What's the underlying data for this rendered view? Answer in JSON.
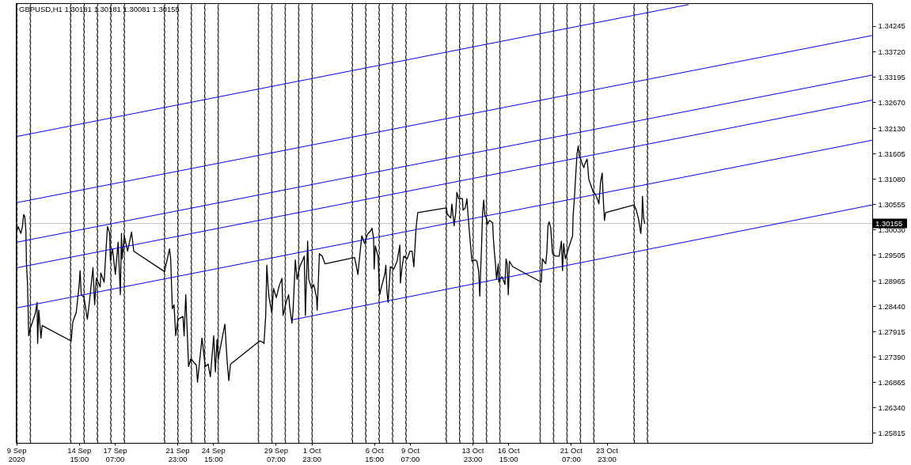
{
  "chart_data": {
    "type": "line",
    "title": "GBPUSD,H1 1.30181 1.30181 1.30081 1.30155",
    "xlim": [
      "2020-09-09T22:00",
      "2020-11-12T18:00"
    ],
    "xticks": [
      {
        "value": "2020-09-09T23:00",
        "label": "9 Sep 2020"
      },
      {
        "value": "2020-09-14T15:00",
        "label": "14 Sep 15:00"
      },
      {
        "value": "2020-09-17T07:00",
        "label": "17 Sep 07:00"
      },
      {
        "value": "2020-09-21T23:00",
        "label": "21 Sep 23:00"
      },
      {
        "value": "2020-09-24T15:00",
        "label": "24 Sep 15:00"
      },
      {
        "value": "2020-09-29T07:00",
        "label": "29 Sep 07:00"
      },
      {
        "value": "2020-10-01T23:00",
        "label": "1 Oct 23:00"
      },
      {
        "value": "2020-10-06T15:00",
        "label": "6 Oct 15:00"
      },
      {
        "value": "2020-10-09T07:00",
        "label": "9 Oct 07:00"
      },
      {
        "value": "2020-10-13T23:00",
        "label": "13 Oct 23:00"
      },
      {
        "value": "2020-10-16T15:00",
        "label": "16 Oct 15:00"
      },
      {
        "value": "2020-10-21T07:00",
        "label": "21 Oct 07:00"
      },
      {
        "value": "2020-10-23T23:00",
        "label": "23 Oct 23:00"
      }
    ],
    "ylim": [
      1.2561,
      1.3472
    ],
    "yticks": [
      1.34245,
      {
        "value": 1.3372,
        "label": "1.33720"
      },
      1.33195,
      {
        "value": 1.3267,
        "label": "1.32670"
      },
      {
        "value": 1.3213,
        "label": "1.32130"
      },
      1.31605,
      {
        "value": 1.3108,
        "label": "1.31080"
      },
      1.30555,
      {
        "value": 1.3003,
        "label": "1.30030"
      },
      1.29505,
      1.28965,
      {
        "value": 1.2844,
        "label": "1.28440"
      },
      1.27915,
      {
        "value": 1.2739,
        "label": "1.27390"
      },
      1.26865,
      {
        "value": 1.2634,
        "label": "1.26340"
      },
      1.25815
    ],
    "x": [
      "2020-09-10T00:00",
      "2020-09-10T02:00",
      "2020-09-10T07:00",
      "2020-09-10T10:00",
      "2020-09-10T12:00",
      "2020-09-10T14:00",
      "2020-09-10T16:00",
      "2020-09-10T17:00",
      "2020-09-10T19:00",
      "2020-09-10T21:00",
      "2020-09-11T00:00",
      "2020-09-11T04:00",
      "2020-09-11T09:00",
      "2020-09-11T12:00",
      "2020-09-11T13:00",
      "2020-09-11T15:00",
      "2020-09-11T19:00",
      "2020-09-11T21:00",
      "2020-09-14T01:00",
      "2020-09-14T04:00",
      "2020-09-14T10:00",
      "2020-09-14T15:00",
      "2020-09-14T17:00",
      "2020-09-14T19:00",
      "2020-09-15T00:00",
      "2020-09-15T06:00",
      "2020-09-15T10:00",
      "2020-09-15T16:00",
      "2020-09-15T19:00",
      "2020-09-15T22:00",
      "2020-09-16T05:00",
      "2020-09-16T06:00",
      "2020-09-16T12:00",
      "2020-09-16T16:00",
      "2020-09-16T18:00",
      "2020-09-16T22:00",
      "2020-09-16T23:00",
      "2020-09-17T03:00",
      "2020-09-17T08:00",
      "2020-09-17T13:00",
      "2020-09-17T17:00",
      "2020-09-17T19:00",
      "2020-09-17T20:00",
      "2020-09-18T00:00",
      "2020-09-18T06:00",
      "2020-09-18T13:00",
      "2020-09-18T17:00",
      "2020-09-21T00:00",
      "2020-09-21T09:00",
      "2020-09-21T11:00",
      "2020-09-21T14:00",
      "2020-09-21T17:00",
      "2020-09-21T20:00",
      "2020-09-22T00:00",
      "2020-09-22T09:00",
      "2020-09-22T11:00",
      "2020-09-22T14:00",
      "2020-09-22T19:00",
      "2020-09-22T23:00",
      "2020-09-23T09:00",
      "2020-09-23T11:00",
      "2020-09-23T19:00",
      "2020-09-24T01:00",
      "2020-09-24T06:00",
      "2020-09-24T10:00",
      "2020-09-24T16:00",
      "2020-09-24T19:00",
      "2020-09-24T22:00",
      "2020-09-25T00:00",
      "2020-09-25T04:00",
      "2020-09-25T12:00",
      "2020-09-25T16:00",
      "2020-09-25T19:00",
      "2020-09-25T22:00",
      "2020-09-28T02:00",
      "2020-09-28T07:00",
      "2020-09-28T10:00",
      "2020-09-28T13:00",
      "2020-09-28T15:00",
      "2020-09-28T17:00",
      "2020-09-28T19:00",
      "2020-09-29T00:00",
      "2020-09-29T03:00",
      "2020-09-29T08:00",
      "2020-09-29T13:00",
      "2020-09-29T18:00",
      "2020-09-29T20:00",
      "2020-09-30T02:00",
      "2020-09-30T06:00",
      "2020-09-30T08:00",
      "2020-09-30T12:00",
      "2020-09-30T14:00",
      "2020-09-30T18:00",
      "2020-09-30T21:00",
      "2020-10-01T02:00",
      "2020-10-01T08:00",
      "2020-10-01T10:00",
      "2020-10-01T12:00",
      "2020-10-01T16:00",
      "2020-10-01T18:00",
      "2020-10-01T23:00",
      "2020-10-02T03:00",
      "2020-10-02T08:00",
      "2020-10-02T09:00",
      "2020-10-02T11:00",
      "2020-10-02T13:00",
      "2020-10-02T18:00",
      "2020-10-02T23:00",
      "2020-10-05T04:00",
      "2020-10-05T10:00",
      "2020-10-05T14:00",
      "2020-10-05T17:00",
      "2020-10-05T22:00",
      "2020-10-06T03:00",
      "2020-10-06T09:00",
      "2020-10-06T11:00",
      "2020-10-06T14:00",
      "2020-10-06T15:00",
      "2020-10-06T17:00",
      "2020-10-06T22:00",
      "2020-10-07T00:00",
      "2020-10-07T01:00",
      "2020-10-07T04:00",
      "2020-10-07T10:00",
      "2020-10-07T12:00",
      "2020-10-07T14:00",
      "2020-10-07T16:00",
      "2020-10-07T20:00",
      "2020-10-08T02:00",
      "2020-10-08T08:00",
      "2020-10-08T13:00",
      "2020-10-08T14:00",
      "2020-10-08T17:00",
      "2020-10-08T20:00",
      "2020-10-09T02:00",
      "2020-10-09T07:00",
      "2020-10-09T11:00",
      "2020-10-09T14:00",
      "2020-10-09T18:00",
      "2020-10-09T21:00",
      "2020-10-12T00:00",
      "2020-10-12T02:00",
      "2020-10-12T08:00",
      "2020-10-12T10:00",
      "2020-10-12T14:00",
      "2020-10-12T17:00",
      "2020-10-12T19:00",
      "2020-10-12T22:00",
      "2020-10-13T05:00",
      "2020-10-13T06:00",
      "2020-10-13T10:00",
      "2020-10-13T13:00",
      "2020-10-13T15:00",
      "2020-10-13T18:00",
      "2020-10-13T20:00",
      "2020-10-13T22:00",
      "2020-10-14T04:00",
      "2020-10-14T07:00",
      "2020-10-14T10:00",
      "2020-10-14T12:00",
      "2020-10-14T13:00",
      "2020-10-14T15:00",
      "2020-10-14T17:00",
      "2020-10-14T19:00",
      "2020-10-14T21:00",
      "2020-10-14T23:00",
      "2020-10-15T02:00",
      "2020-10-15T05:00",
      "2020-10-15T11:00",
      "2020-10-15T12:00",
      "2020-10-15T14:00",
      "2020-10-15T16:00",
      "2020-10-15T18:00",
      "2020-10-15T21:00",
      "2020-10-15T22:00",
      "2020-10-16T01:00",
      "2020-10-16T04:00",
      "2020-10-16T09:00",
      "2020-10-16T11:00",
      "2020-10-16T13:00",
      "2020-10-16T15:00",
      "2020-10-16T17:00",
      "2020-10-16T23:00",
      "2020-10-19T02:00",
      "2020-10-19T04:00",
      "2020-10-19T10:00",
      "2020-10-19T12:00",
      "2020-10-19T14:00",
      "2020-10-19T16:00",
      "2020-10-19T19:00",
      "2020-10-19T22:00",
      "2020-10-20T03:00",
      "2020-10-20T10:00",
      "2020-10-20T14:00",
      "2020-10-20T16:00",
      "2020-10-20T18:00",
      "2020-10-20T21:00",
      "2020-10-21T04:00",
      "2020-10-21T10:00",
      "2020-10-21T11:00",
      "2020-10-21T13:00",
      "2020-10-21T16:00",
      "2020-10-21T18:00",
      "2020-10-21T20:00",
      "2020-10-21T22:00",
      "2020-10-22T01:00",
      "2020-10-22T06:00",
      "2020-10-22T08:00",
      "2020-10-22T12:00",
      "2020-10-22T15:00",
      "2020-10-22T19:00",
      "2020-10-22T23:00",
      "2020-10-23T02:00",
      "2020-10-23T07:00",
      "2020-10-23T09:00",
      "2020-10-23T12:00",
      "2020-10-23T15:00",
      "2020-10-23T17:00",
      "2020-10-23T19:00",
      "2020-10-23T21:00",
      "2020-10-26T00:00",
      "2020-10-26T04:00",
      "2020-10-26T08:00",
      "2020-10-26T12:00",
      "2020-10-26T14:00",
      "2020-10-26T15:00",
      "2020-10-26T17:00",
      "2020-10-26T19:00"
    ],
    "series": [
      {
        "color": "#000000",
        "values": [
          1.3001,
          1.3009,
          1.2995,
          1.3011,
          1.3034,
          1.303,
          1.3001,
          1.2932,
          1.2889,
          1.2783,
          1.2799,
          1.2812,
          1.283,
          1.2852,
          1.2767,
          1.2836,
          1.2778,
          1.2804,
          1.2772,
          1.2812,
          1.2831,
          1.2884,
          1.2918,
          1.2868,
          1.2862,
          1.2817,
          1.2857,
          1.2924,
          1.2847,
          1.2902,
          1.2884,
          1.2913,
          1.2894,
          1.2974,
          1.3009,
          1.2995,
          1.294,
          1.2963,
          1.291,
          1.2977,
          1.2868,
          1.2995,
          1.2942,
          1.299,
          1.2958,
          1.2998,
          1.2958,
          1.2916,
          1.2963,
          1.2942,
          1.2839,
          1.2847,
          1.2783,
          1.2817,
          1.2823,
          1.2783,
          1.2868,
          1.2719,
          1.2735,
          1.2722,
          1.2687,
          1.2778,
          1.2719,
          1.2724,
          1.2698,
          1.2783,
          1.2708,
          1.2775,
          1.2735,
          1.2759,
          1.2807,
          1.273,
          1.269,
          1.2724,
          1.2772,
          1.277,
          1.2767,
          1.2825,
          1.2929,
          1.2889,
          1.2862,
          1.2831,
          1.2881,
          1.2862,
          1.2886,
          1.2902,
          1.2825,
          1.2854,
          1.2868,
          1.2841,
          1.2809,
          1.2836,
          1.294,
          1.29,
          1.2926,
          1.2942,
          1.2948,
          1.2825,
          1.2979,
          1.29,
          1.2881,
          1.2889,
          1.2862,
          1.2836,
          1.2889,
          1.2953,
          1.2948,
          1.2932,
          1.2945,
          1.291,
          1.2958,
          1.299,
          1.2974,
          1.2993,
          1.3001,
          1.3006,
          1.2985,
          1.2921,
          1.2969,
          1.2948,
          1.2889,
          1.2868,
          1.2884,
          1.291,
          1.2929,
          1.2873,
          1.2852,
          1.2926,
          1.2921,
          1.2937,
          1.2971,
          1.2892,
          1.2926,
          1.2948,
          1.2942,
          1.2958,
          1.2958,
          1.2926,
          1.3006,
          1.3038,
          1.3048,
          1.3035,
          1.3027,
          1.3056,
          1.3011,
          1.3038,
          1.308,
          1.3067,
          1.3067,
          1.3043,
          1.3048,
          1.3067,
          1.3033,
          1.299,
          1.2963,
          1.2937,
          1.294,
          1.2937,
          1.2916,
          1.2865,
          1.29,
          1.2963,
          1.3038,
          1.3064,
          1.3033,
          1.303,
          1.3014,
          1.3022,
          1.3017,
          1.299,
          1.2958,
          1.2932,
          1.29,
          1.2932,
          1.2894,
          1.2902,
          1.2905,
          1.2889,
          1.2942,
          1.2932,
          1.2868,
          1.2937,
          1.2926,
          1.2894,
          1.2942,
          1.2932,
          1.2958,
          1.3011,
          1.3019,
          1.3006,
          1.2953,
          1.2948,
          1.2948,
          1.2979,
          1.2918,
          1.2974,
          1.2942,
          1.2969,
          1.299,
          1.3033,
          1.3064,
          1.3123,
          1.316,
          1.3176,
          1.3155,
          1.3147,
          1.3131,
          1.3139,
          1.3149,
          1.3107,
          1.3094,
          1.308,
          1.3078,
          1.3064,
          1.3056,
          1.3101,
          1.312,
          1.3064,
          1.3022,
          1.3038,
          1.3054,
          1.3043,
          1.3025,
          1.2995,
          1.3027,
          1.3072,
          1.3027,
          1.3016
        ]
      },
      {
        "color": "#0000ff",
        "x": [
          "2020-09-10T01:00",
          "2020-10-30T01:00"
        ],
        "values": [
          1.3196,
          1.3469
        ]
      },
      {
        "color": "#0000ff",
        "x": [
          "2020-09-10T01:00",
          "2020-11-12T18:00"
        ],
        "values": [
          1.3059,
          1.3405
        ]
      },
      {
        "color": "#0000ff",
        "x": [
          "2020-09-10T01:00",
          "2020-11-12T18:00"
        ],
        "values": [
          1.2977,
          1.3323
        ]
      },
      {
        "color": "#0000ff",
        "x": [
          "2020-09-10T01:00",
          "2020-11-12T18:00"
        ],
        "values": [
          1.2924,
          1.3271
        ]
      },
      {
        "color": "#0000ff",
        "x": [
          "2020-09-10T01:00",
          "2020-11-12T18:00"
        ],
        "values": [
          1.2841,
          1.3188
        ]
      },
      {
        "color": "#0000ff",
        "x": [
          "2020-09-30T13:00",
          "2020-11-12T18:00"
        ],
        "values": [
          1.2816,
          1.3054
        ]
      }
    ],
    "ref_lines": [
      {
        "axis": "y",
        "value": 1.30155,
        "label": "1.30155",
        "color": "#c0c0c0"
      },
      {
        "axis": "x",
        "value": "2020-09-10",
        "color": "#000000",
        "line_style": "dashed"
      },
      {
        "axis": "x",
        "value": "2020-09-11",
        "color": "#000000",
        "line_style": "dashed"
      },
      {
        "axis": "x",
        "value": "2020-09-14",
        "color": "#000000",
        "line_style": "dashed"
      },
      {
        "axis": "x",
        "value": "2020-09-15",
        "color": "#000000",
        "line_style": "dashed"
      },
      {
        "axis": "x",
        "value": "2020-09-16",
        "color": "#000000",
        "line_style": "dashed"
      },
      {
        "axis": "x",
        "value": "2020-09-17",
        "color": "#000000",
        "line_style": "dashed"
      },
      {
        "axis": "x",
        "value": "2020-09-18",
        "color": "#000000",
        "line_style": "dashed"
      },
      {
        "axis": "x",
        "value": "2020-09-21",
        "color": "#000000",
        "line_style": "dashed"
      },
      {
        "axis": "x",
        "value": "2020-09-22",
        "color": "#000000",
        "line_style": "dashed"
      },
      {
        "axis": "x",
        "value": "2020-09-23",
        "color": "#000000",
        "line_style": "dashed"
      },
      {
        "axis": "x",
        "value": "2020-09-24",
        "color": "#000000",
        "line_style": "dashed"
      },
      {
        "axis": "x",
        "value": "2020-09-25",
        "color": "#000000",
        "line_style": "dashed"
      },
      {
        "axis": "x",
        "value": "2020-09-28",
        "color": "#000000",
        "line_style": "dashed"
      },
      {
        "axis": "x",
        "value": "2020-09-29",
        "color": "#000000",
        "line_style": "dashed"
      },
      {
        "axis": "x",
        "value": "2020-09-30",
        "color": "#000000",
        "line_style": "dashed"
      },
      {
        "axis": "x",
        "value": "2020-10-01",
        "color": "#000000",
        "line_style": "dashed"
      },
      {
        "axis": "x",
        "value": "2020-10-02",
        "color": "#000000",
        "line_style": "dashed"
      },
      {
        "axis": "x",
        "value": "2020-10-05",
        "color": "#000000",
        "line_style": "dashed"
      },
      {
        "axis": "x",
        "value": "2020-10-06",
        "color": "#000000",
        "line_style": "dashed"
      },
      {
        "axis": "x",
        "value": "2020-10-07",
        "color": "#000000",
        "line_style": "dashed"
      },
      {
        "axis": "x",
        "value": "2020-10-08",
        "color": "#000000",
        "line_style": "dashed"
      },
      {
        "axis": "x",
        "value": "2020-10-09",
        "color": "#000000",
        "line_style": "dashed"
      },
      {
        "axis": "x",
        "value": "2020-10-12",
        "color": "#000000",
        "line_style": "dashed"
      },
      {
        "axis": "x",
        "value": "2020-10-13",
        "color": "#000000",
        "line_style": "dashed"
      },
      {
        "axis": "x",
        "value": "2020-10-14",
        "color": "#000000",
        "line_style": "dashed"
      },
      {
        "axis": "x",
        "value": "2020-10-15",
        "color": "#000000",
        "line_style": "dashed"
      },
      {
        "axis": "x",
        "value": "2020-10-16",
        "color": "#000000",
        "line_style": "dashed"
      },
      {
        "axis": "x",
        "value": "2020-10-19",
        "color": "#000000",
        "line_style": "dashed"
      },
      {
        "axis": "x",
        "value": "2020-10-20",
        "color": "#000000",
        "line_style": "dashed"
      },
      {
        "axis": "x",
        "value": "2020-10-21",
        "color": "#000000",
        "line_style": "dashed"
      },
      {
        "axis": "x",
        "value": "2020-10-22",
        "color": "#000000",
        "line_style": "dashed"
      },
      {
        "axis": "x",
        "value": "2020-10-23",
        "color": "#000000",
        "line_style": "dashed"
      },
      {
        "axis": "x",
        "value": "2020-10-26",
        "color": "#000000",
        "line_style": "dashed"
      },
      {
        "axis": "x",
        "value": "2020-10-27",
        "color": "#000000",
        "line_style": "dashed"
      }
    ]
  }
}
